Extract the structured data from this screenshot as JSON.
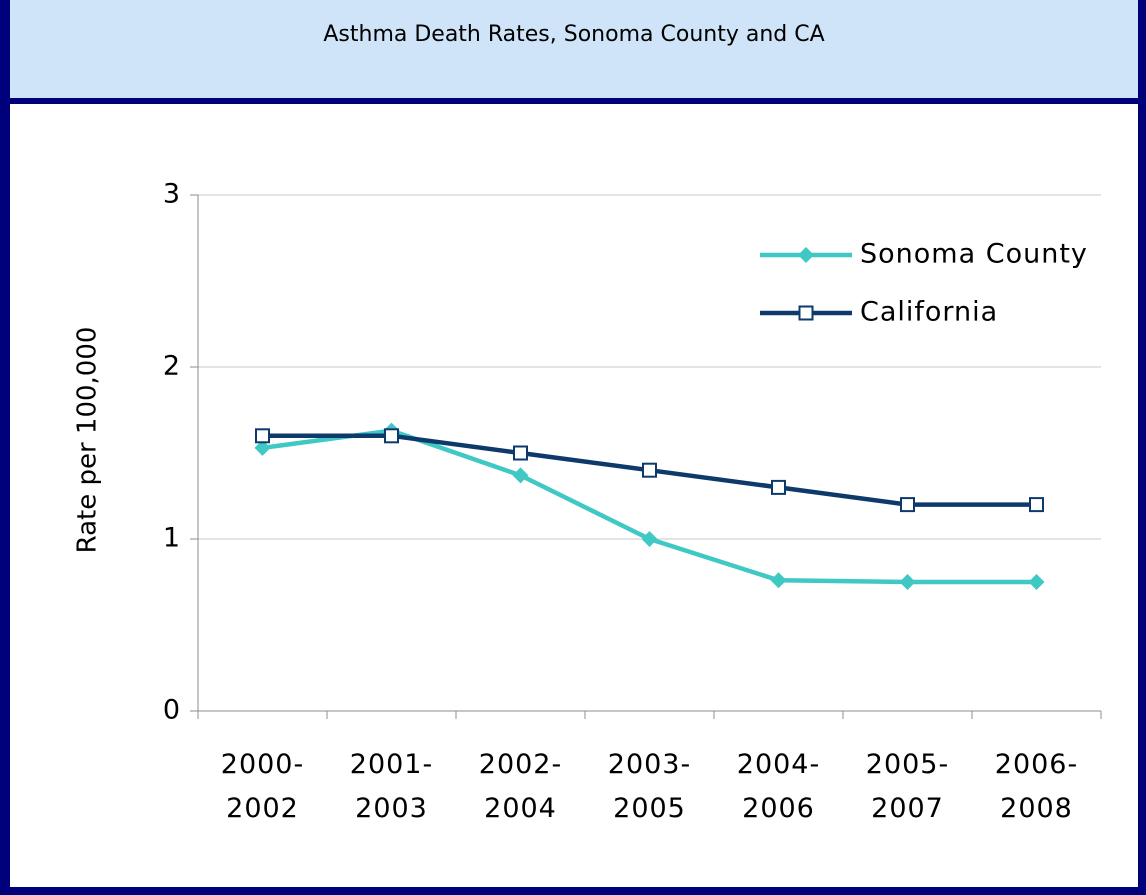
{
  "chart_data": {
    "type": "line",
    "title": "Asthma Death Rates, Sonoma County and CA",
    "y_label": "Rate per 100,000",
    "categories": [
      "2000-2002",
      "2001-2003",
      "2002-2004",
      "2003-2005",
      "2004-2006",
      "2005-2007",
      "2006-2008"
    ],
    "series": [
      {
        "name": "Sonoma County",
        "color": "#3fc8c4",
        "marker": "diamond",
        "values": [
          1.53,
          1.63,
          1.37,
          1.0,
          0.76,
          0.75,
          0.75
        ]
      },
      {
        "name": "California",
        "color": "#0d3a6b",
        "marker": "square",
        "values": [
          1.6,
          1.6,
          1.5,
          1.4,
          1.3,
          1.2,
          1.2
        ]
      }
    ],
    "ylim": [
      0,
      3
    ],
    "yticks": [
      0,
      1,
      2,
      3
    ],
    "grid": true,
    "legend": "top-right"
  }
}
